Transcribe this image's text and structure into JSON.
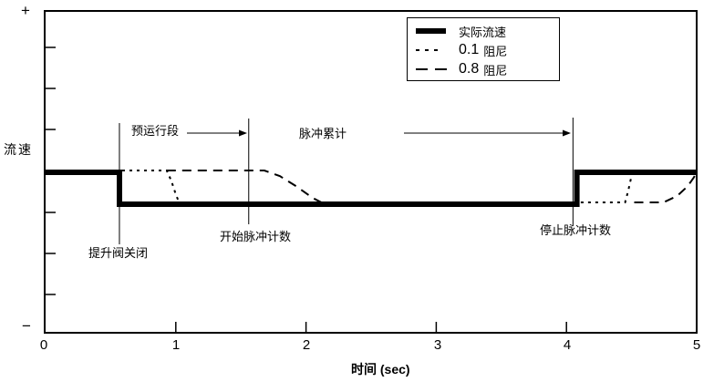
{
  "figure": {
    "y_axis_label": "流速",
    "y_plus_label": "+",
    "y_minus_label": "−",
    "x_axis_label": "时间 (sec)"
  },
  "legend": {
    "items": [
      {
        "swatch": "solid-thick",
        "value": "",
        "label": "实际流速"
      },
      {
        "swatch": "dotted",
        "value": "0.1",
        "label": "阻尼"
      },
      {
        "swatch": "dashed",
        "value": "0.8",
        "label": "阻尼"
      }
    ]
  },
  "annotations": {
    "pre_run": "预运行段",
    "pulse_total": "脉冲累计",
    "valve_closed": "提升阀关闭",
    "start_count": "开始脉冲计数",
    "stop_count": "停止脉冲计数"
  },
  "colors": {
    "line": "#000000",
    "background": "#ffffff"
  },
  "chart_data": {
    "type": "line",
    "title": "",
    "xlabel": "时间 (sec)",
    "ylabel": "流速",
    "xlim": [
      0,
      5
    ],
    "x_ticks": [
      0,
      1,
      2,
      3,
      4,
      5
    ],
    "x_tick_labels": [
      "0",
      "1",
      "2",
      "3",
      "4",
      "5"
    ],
    "y_tick_count": 7,
    "y_axis_end_labels": [
      "+",
      "−"
    ],
    "grid": false,
    "legend_position": "top-right",
    "value_levels": {
      "high": 1,
      "low": 0
    },
    "series": [
      {
        "name": "实际流速",
        "style": "solid",
        "stroke_width": 6,
        "dash": "",
        "segments": [
          [
            [
              0,
              1
            ],
            [
              0.567,
              1
            ],
            [
              0.567,
              0
            ],
            [
              4.08,
              0
            ],
            [
              4.08,
              1
            ],
            [
              5,
              1
            ]
          ]
        ]
      },
      {
        "name": "0.1 阻尼",
        "style": "dotted",
        "stroke_width": 2,
        "dash": "3 5",
        "segments": [
          [
            [
              0.588,
              1.057
            ],
            [
              0.93,
              1.057
            ],
            [
              0.965,
              0.74
            ],
            [
              1.0,
              0.31
            ],
            [
              1.025,
              0.057
            ]
          ],
          [
            [
              4.11,
              0.057
            ],
            [
              4.45,
              0.057
            ],
            [
              4.475,
              0.43
            ],
            [
              4.495,
              0.8
            ],
            [
              4.515,
              1.03
            ]
          ]
        ]
      },
      {
        "name": "0.8 阻尼",
        "style": "dashed",
        "stroke_width": 2,
        "dash": "10 7",
        "segments": [
          [
            [
              0.93,
              1.057
            ],
            [
              1.68,
              1.057
            ],
            [
              1.8,
              0.88
            ],
            [
              1.93,
              0.55
            ],
            [
              2.05,
              0.2
            ],
            [
              2.13,
              0.03
            ]
          ],
          [
            [
              4.52,
              0.057
            ],
            [
              4.745,
              0.057
            ],
            [
              4.85,
              0.26
            ],
            [
              4.93,
              0.56
            ],
            [
              4.98,
              0.85
            ],
            [
              5.0,
              1.0
            ]
          ]
        ]
      }
    ],
    "events": [
      {
        "id": "valve_closed",
        "label": "提升阀关闭",
        "t": 0.567
      },
      {
        "id": "start_count",
        "label": "开始脉冲计数",
        "t": 1.56
      },
      {
        "id": "stop_count",
        "label": "停止脉冲计数",
        "t": 4.05
      }
    ],
    "spans": [
      {
        "label": "预运行段",
        "from_t": 0.567,
        "to_t": 1.56
      },
      {
        "label": "脉冲累计",
        "from_t": 1.56,
        "to_t": 4.05
      }
    ]
  }
}
